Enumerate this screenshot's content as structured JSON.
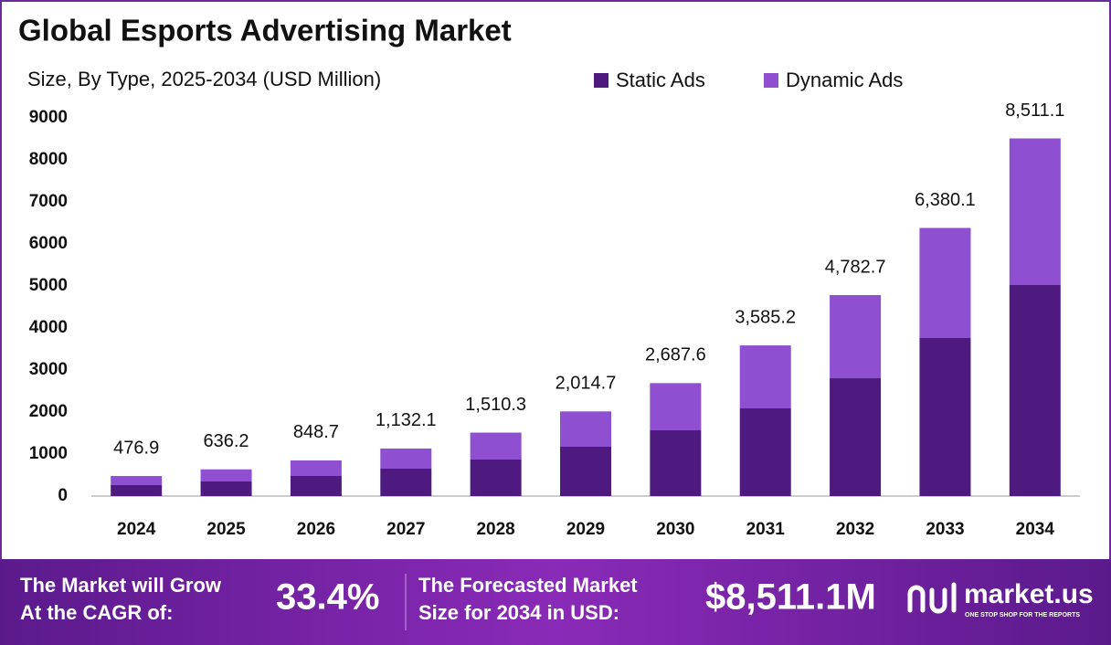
{
  "chart_data": {
    "type": "stacked_bar",
    "title": "Global Esports Advertising Market",
    "subtitle": "Size, By Type, 2025-2034 (USD Million)",
    "categories": [
      "2024",
      "2025",
      "2026",
      "2027",
      "2028",
      "2029",
      "2030",
      "2031",
      "2032",
      "2033",
      "2034"
    ],
    "series": [
      {
        "name": "Static Ads",
        "color": "#4e1a7f",
        "values": [
          262,
          348,
          478,
          652,
          870,
          1174,
          1565,
          2087,
          2804,
          3761,
          5022
        ]
      },
      {
        "name": "Dynamic Ads",
        "color": "#8e4fd1",
        "values": [
          214.9,
          288.2,
          370.7,
          480.1,
          640.3,
          840.7,
          1122.6,
          1498.2,
          1978.7,
          2619.1,
          3489.1
        ]
      }
    ],
    "totals": [
      476.9,
      636.2,
      848.7,
      1132.1,
      1510.3,
      2014.7,
      2687.6,
      3585.2,
      4782.7,
      6380.1,
      8511.1
    ],
    "total_labels": [
      "476.9",
      "636.2",
      "848.7",
      "1,132.1",
      "1,510.3",
      "2,014.7",
      "2,687.6",
      "3,585.2",
      "4,782.7",
      "6,380.1",
      "8,511.1"
    ],
    "ylim": [
      0,
      9000
    ],
    "yticks": [
      0,
      1000,
      2000,
      3000,
      4000,
      5000,
      6000,
      7000,
      8000,
      9000
    ],
    "grid": false,
    "legend": "top"
  },
  "footer": {
    "cagr_text": [
      "The Market will Grow",
      "At the CAGR of:"
    ],
    "cagr": "33.4%",
    "forecast_text": [
      "The Forecasted Market",
      "Size for 2034 in USD:"
    ],
    "forecast_value": "$8,511.1M",
    "brand": "market.us",
    "tagline": "ONE STOP SHOP FOR THE REPORTS"
  }
}
